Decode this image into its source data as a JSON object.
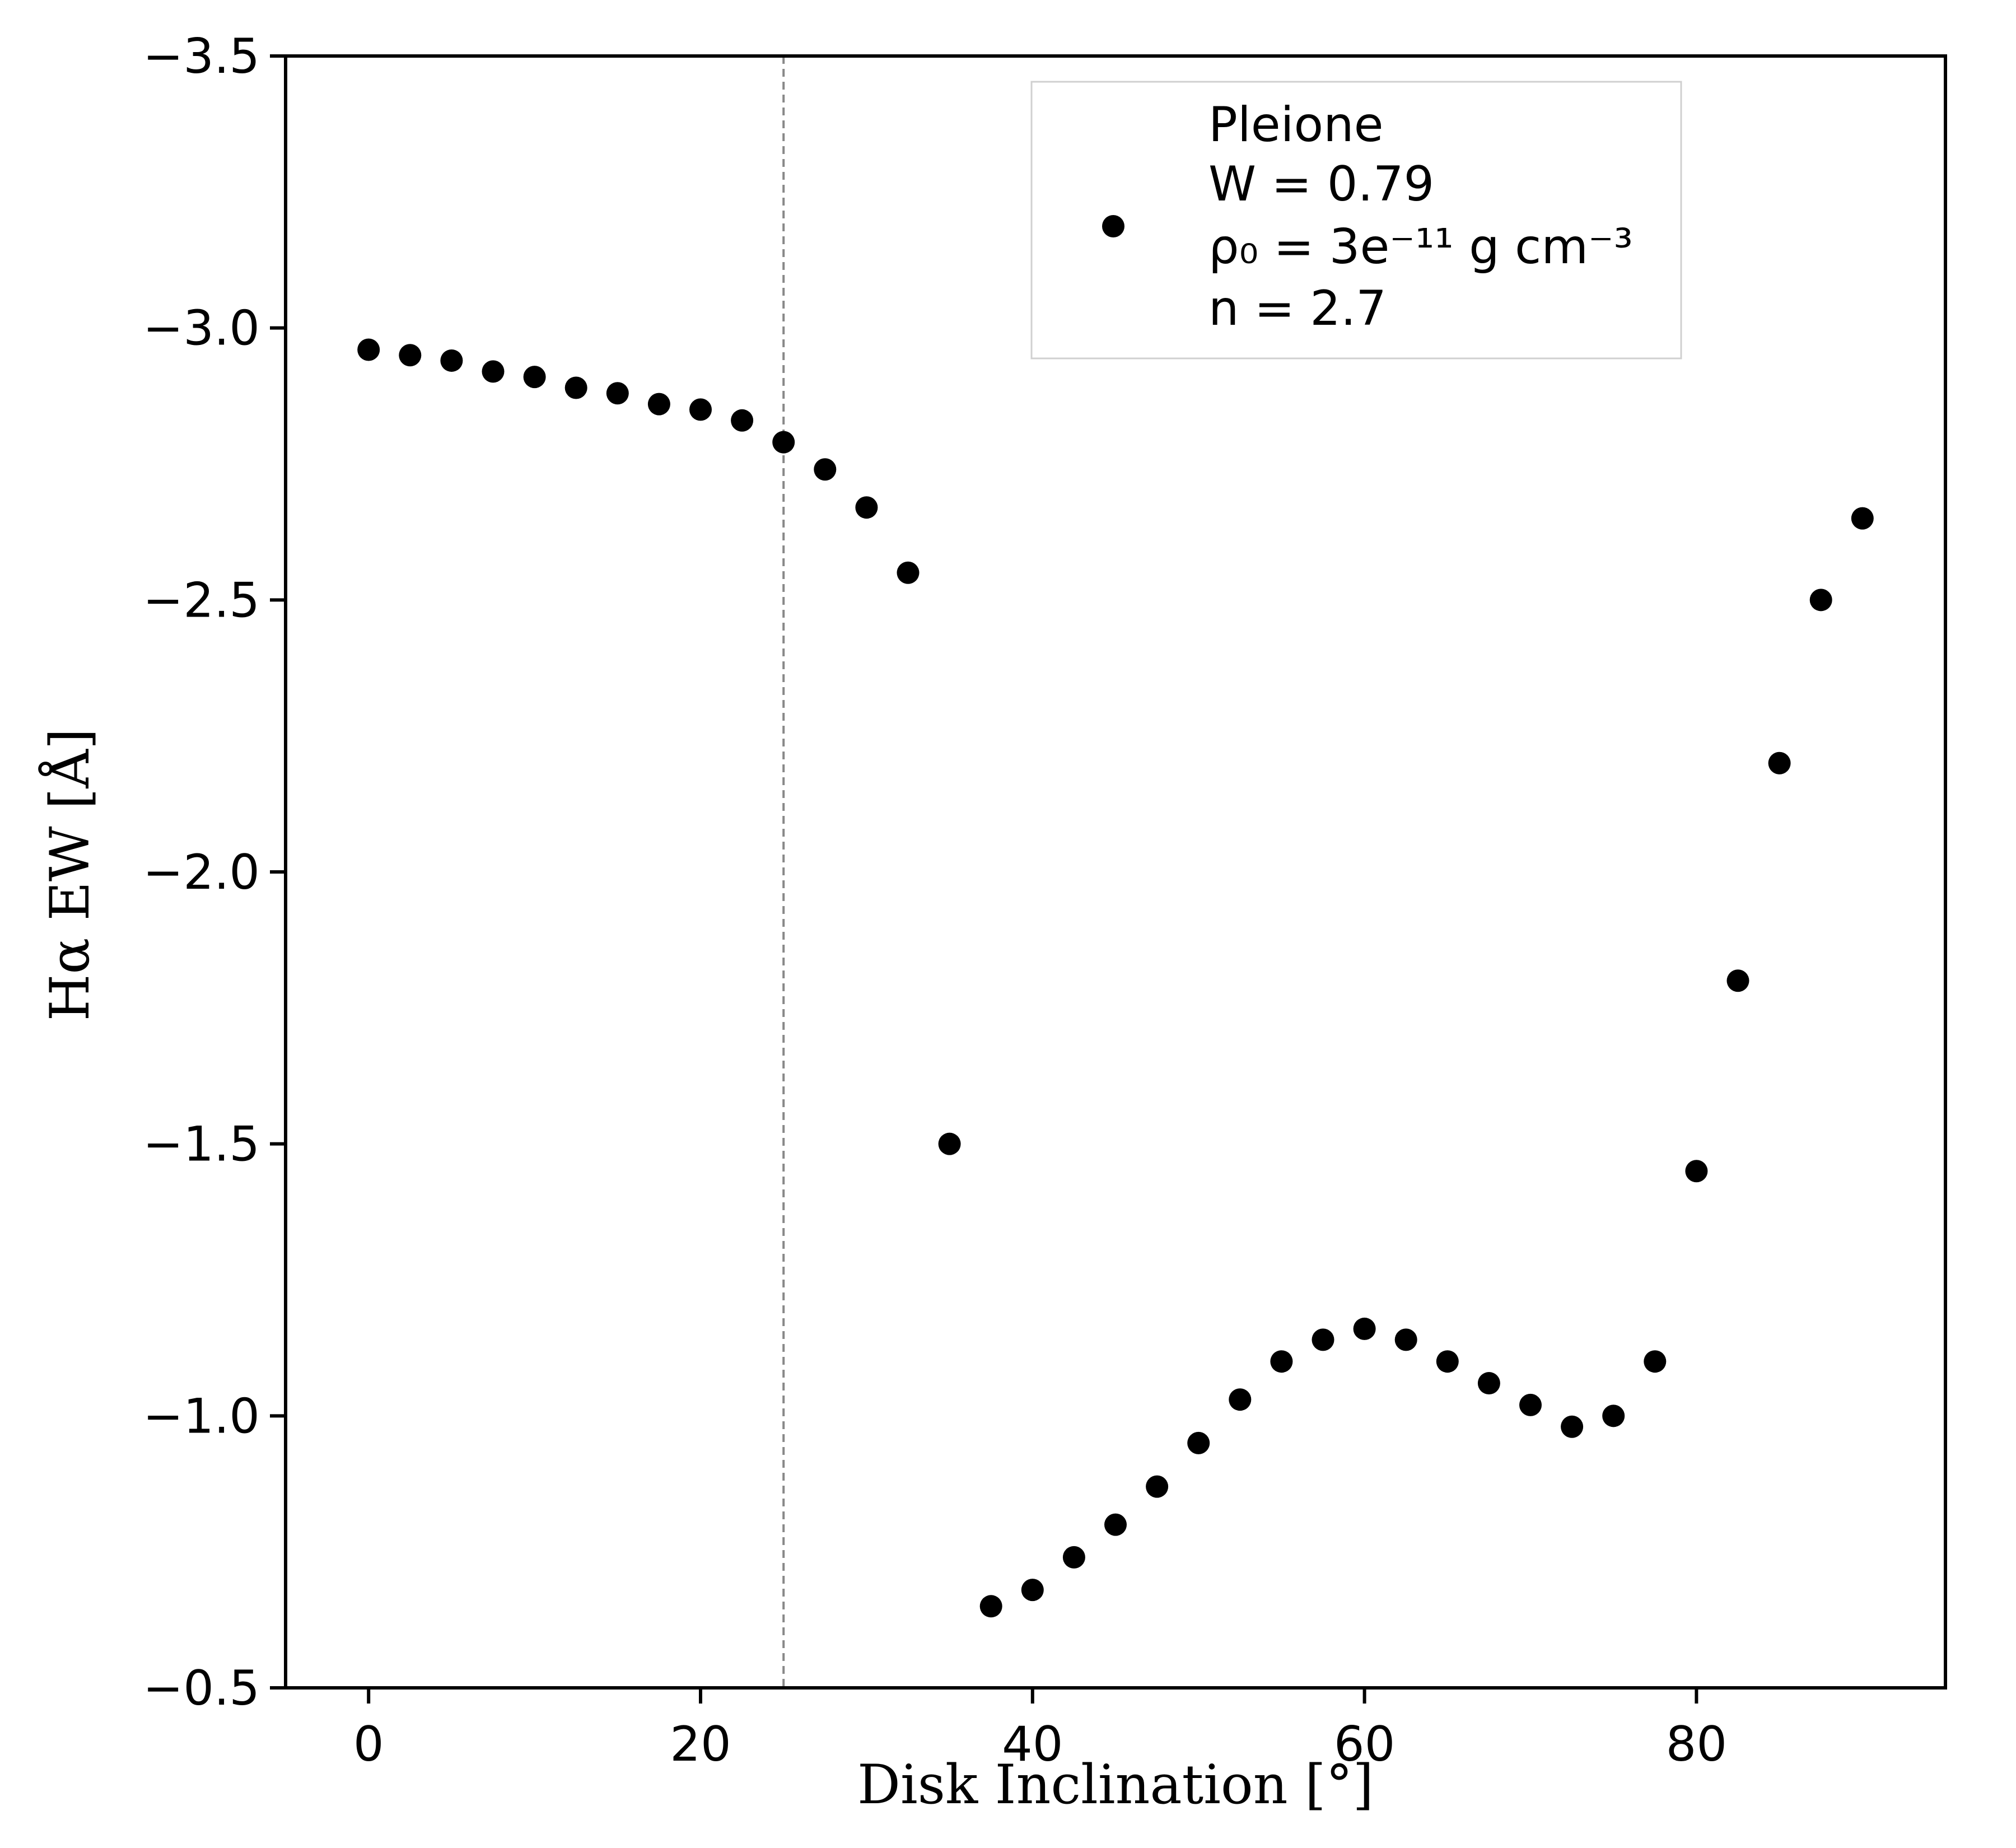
{
  "chart_data": {
    "type": "scatter",
    "title": "",
    "xlabel": "Disk Inclination [°]",
    "ylabel": "Hα EW [Å]",
    "xlim": [
      -5,
      95
    ],
    "ylim": [
      -0.5,
      -3.5
    ],
    "y_inverted": true,
    "x_ticks": [
      0,
      20,
      40,
      60,
      80
    ],
    "x_tick_labels": [
      "0",
      "20",
      "40",
      "60",
      "80"
    ],
    "y_ticks": [
      -3.5,
      -3.0,
      -2.5,
      -2.0,
      -1.5,
      -1.0,
      -0.5
    ],
    "y_tick_labels": [
      "−3.5",
      "−3.0",
      "−2.5",
      "−2.0",
      "−1.5",
      "−1.0",
      "−0.5"
    ],
    "grid": false,
    "reference_line": {
      "orientation": "vertical",
      "x": 25,
      "style": "dashed",
      "color": "#888888"
    },
    "legend": {
      "placement": "top-center-right",
      "entries": [
        {
          "marker": "circle",
          "lines": [
            "Pleione",
            "W = 0.79",
            "ρ₀ = 3e⁻¹¹ g cm⁻³",
            "n = 2.7"
          ]
        }
      ]
    },
    "series": [
      {
        "name": "Pleione",
        "color": "#000000",
        "marker": "circle",
        "x": [
          0,
          2.5,
          5,
          7.5,
          10,
          12.5,
          15,
          17.5,
          20,
          22.5,
          25,
          27.5,
          30,
          32.5,
          35,
          37.5,
          40,
          42.5,
          45,
          47.5,
          50,
          52.5,
          55,
          57.5,
          60,
          62.5,
          65,
          67.5,
          70,
          72.5,
          75,
          77.5,
          80,
          82.5,
          85,
          87.5,
          90
        ],
        "y": [
          -2.96,
          -2.95,
          -2.94,
          -2.92,
          -2.91,
          -2.89,
          -2.88,
          -2.86,
          -2.85,
          -2.83,
          -2.79,
          -2.74,
          -2.67,
          -2.55,
          -1.5,
          -0.65,
          -0.68,
          -0.74,
          -0.8,
          -0.87,
          -0.95,
          -1.03,
          -1.1,
          -1.14,
          -1.16,
          -1.14,
          -1.1,
          -1.06,
          -1.02,
          -0.98,
          -1.0,
          -1.1,
          -1.45,
          -1.8,
          -2.2,
          -2.5,
          -2.65
        ]
      }
    ]
  }
}
